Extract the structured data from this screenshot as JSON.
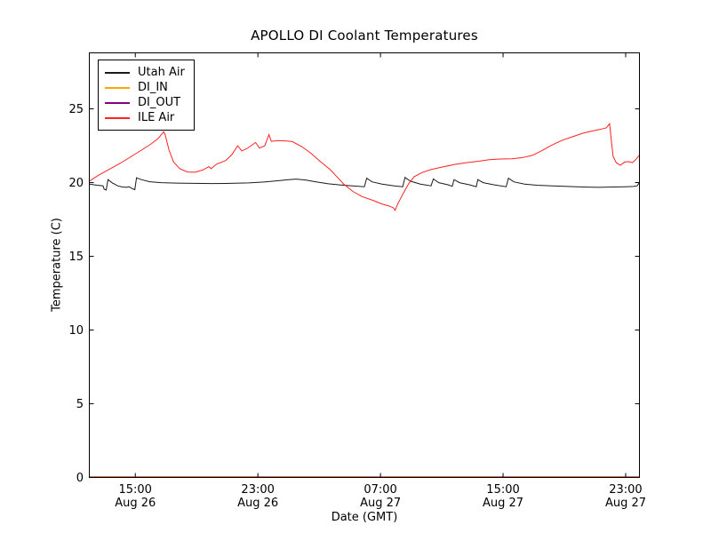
{
  "figure": {
    "background": "#ffffff"
  },
  "chart_data": {
    "type": "line",
    "title": "APOLLO DI Coolant Temperatures",
    "xlabel": "Date (GMT)",
    "ylabel": "Temperature (C)",
    "grid": false,
    "legend_position": "upper-left",
    "x_unit_note": "hours since Aug 26 12:00 GMT",
    "xlim": [
      0,
      35.9
    ],
    "ylim": [
      0,
      28.8
    ],
    "x_ticks": [
      {
        "t": 3,
        "time": "15:00",
        "date": "Aug 26"
      },
      {
        "t": 11,
        "time": "23:00",
        "date": "Aug 26"
      },
      {
        "t": 19,
        "time": "07:00",
        "date": "Aug 27"
      },
      {
        "t": 27,
        "time": "15:00",
        "date": "Aug 27"
      },
      {
        "t": 35,
        "time": "23:00",
        "date": "Aug 27"
      }
    ],
    "y_ticks": [
      0,
      5,
      10,
      15,
      20,
      25
    ],
    "axis_color": "#000000",
    "series": [
      {
        "name": "Utah Air",
        "color": "#1a1a1a",
        "points": [
          [
            0,
            19.9
          ],
          [
            0.5,
            19.82
          ],
          [
            0.9,
            19.78
          ],
          [
            0.97,
            19.55
          ],
          [
            1.1,
            19.5
          ],
          [
            1.22,
            20.2
          ],
          [
            1.5,
            19.98
          ],
          [
            1.85,
            19.78
          ],
          [
            2.15,
            19.7
          ],
          [
            2.45,
            19.68
          ],
          [
            2.6,
            19.72
          ],
          [
            2.78,
            19.6
          ],
          [
            2.97,
            19.52
          ],
          [
            3.08,
            20.32
          ],
          [
            3.4,
            20.2
          ],
          [
            3.95,
            20.06
          ],
          [
            4.7,
            20.0
          ],
          [
            5.7,
            19.97
          ],
          [
            6.8,
            19.95
          ],
          [
            8.0,
            19.94
          ],
          [
            9.2,
            19.95
          ],
          [
            10.4,
            19.98
          ],
          [
            11.4,
            20.04
          ],
          [
            12.2,
            20.12
          ],
          [
            13.0,
            20.2
          ],
          [
            13.5,
            20.24
          ],
          [
            14.1,
            20.18
          ],
          [
            14.8,
            20.05
          ],
          [
            15.6,
            19.92
          ],
          [
            16.4,
            19.84
          ],
          [
            17.2,
            19.78
          ],
          [
            17.95,
            19.72
          ],
          [
            18.1,
            20.3
          ],
          [
            18.45,
            20.05
          ],
          [
            19.1,
            19.9
          ],
          [
            19.9,
            19.78
          ],
          [
            20.45,
            19.72
          ],
          [
            20.6,
            20.35
          ],
          [
            20.95,
            20.1
          ],
          [
            21.6,
            19.9
          ],
          [
            22.3,
            19.78
          ],
          [
            22.45,
            20.25
          ],
          [
            22.8,
            20.0
          ],
          [
            23.4,
            19.85
          ],
          [
            23.68,
            19.75
          ],
          [
            23.8,
            20.2
          ],
          [
            24.15,
            20.0
          ],
          [
            24.8,
            19.85
          ],
          [
            25.25,
            19.72
          ],
          [
            25.35,
            20.2
          ],
          [
            25.7,
            20.0
          ],
          [
            26.4,
            19.85
          ],
          [
            27.2,
            19.72
          ],
          [
            27.35,
            20.3
          ],
          [
            27.7,
            20.05
          ],
          [
            28.4,
            19.9
          ],
          [
            29.2,
            19.82
          ],
          [
            30.2,
            19.78
          ],
          [
            31.2,
            19.74
          ],
          [
            32.2,
            19.7
          ],
          [
            33.2,
            19.68
          ],
          [
            34.2,
            19.7
          ],
          [
            35.0,
            19.72
          ],
          [
            35.5,
            19.74
          ],
          [
            35.75,
            19.78
          ],
          [
            35.88,
            19.98
          ]
        ]
      },
      {
        "name": "DI_IN",
        "color": "#ffa500",
        "points": [
          [
            0,
            0
          ],
          [
            35.88,
            0
          ]
        ]
      },
      {
        "name": "DI_OUT",
        "color": "#800080",
        "points": [
          [
            0,
            0
          ],
          [
            35.88,
            0
          ]
        ]
      },
      {
        "name": "ILE Air",
        "color": "#ff2020",
        "points": [
          [
            0,
            20.1
          ],
          [
            0.6,
            20.5
          ],
          [
            1.3,
            20.9
          ],
          [
            2.0,
            21.3
          ],
          [
            2.7,
            21.75
          ],
          [
            3.4,
            22.2
          ],
          [
            4.0,
            22.6
          ],
          [
            4.5,
            23.0
          ],
          [
            4.85,
            23.45
          ],
          [
            4.95,
            23.25
          ],
          [
            5.2,
            22.2
          ],
          [
            5.5,
            21.4
          ],
          [
            5.9,
            20.95
          ],
          [
            6.4,
            20.72
          ],
          [
            6.9,
            20.7
          ],
          [
            7.4,
            20.85
          ],
          [
            7.8,
            21.08
          ],
          [
            7.95,
            20.95
          ],
          [
            8.3,
            21.25
          ],
          [
            8.9,
            21.5
          ],
          [
            9.3,
            21.9
          ],
          [
            9.68,
            22.5
          ],
          [
            9.95,
            22.15
          ],
          [
            10.3,
            22.32
          ],
          [
            10.85,
            22.72
          ],
          [
            11.1,
            22.35
          ],
          [
            11.45,
            22.5
          ],
          [
            11.72,
            23.25
          ],
          [
            11.88,
            22.8
          ],
          [
            12.35,
            22.85
          ],
          [
            12.9,
            22.82
          ],
          [
            13.25,
            22.78
          ],
          [
            13.85,
            22.45
          ],
          [
            14.45,
            22.0
          ],
          [
            15.05,
            21.45
          ],
          [
            15.7,
            20.9
          ],
          [
            16.2,
            20.35
          ],
          [
            16.6,
            19.9
          ],
          [
            17.2,
            19.4
          ],
          [
            17.8,
            19.05
          ],
          [
            18.5,
            18.8
          ],
          [
            19.1,
            18.55
          ],
          [
            19.6,
            18.4
          ],
          [
            19.85,
            18.28
          ],
          [
            19.95,
            18.12
          ],
          [
            20.15,
            18.6
          ],
          [
            20.5,
            19.3
          ],
          [
            20.85,
            19.95
          ],
          [
            21.2,
            20.4
          ],
          [
            21.7,
            20.68
          ],
          [
            22.3,
            20.88
          ],
          [
            23.0,
            21.05
          ],
          [
            23.8,
            21.22
          ],
          [
            24.6,
            21.35
          ],
          [
            25.4,
            21.45
          ],
          [
            26.1,
            21.55
          ],
          [
            26.8,
            21.6
          ],
          [
            27.6,
            21.62
          ],
          [
            28.3,
            21.7
          ],
          [
            28.9,
            21.85
          ],
          [
            29.5,
            22.15
          ],
          [
            30.1,
            22.5
          ],
          [
            30.8,
            22.85
          ],
          [
            31.5,
            23.1
          ],
          [
            32.2,
            23.35
          ],
          [
            32.8,
            23.5
          ],
          [
            33.3,
            23.6
          ],
          [
            33.75,
            23.72
          ],
          [
            33.95,
            24.0
          ],
          [
            34.05,
            23.0
          ],
          [
            34.18,
            21.8
          ],
          [
            34.38,
            21.35
          ],
          [
            34.65,
            21.18
          ],
          [
            34.95,
            21.4
          ],
          [
            35.2,
            21.42
          ],
          [
            35.45,
            21.35
          ],
          [
            35.65,
            21.55
          ],
          [
            35.88,
            21.85
          ]
        ]
      }
    ]
  }
}
